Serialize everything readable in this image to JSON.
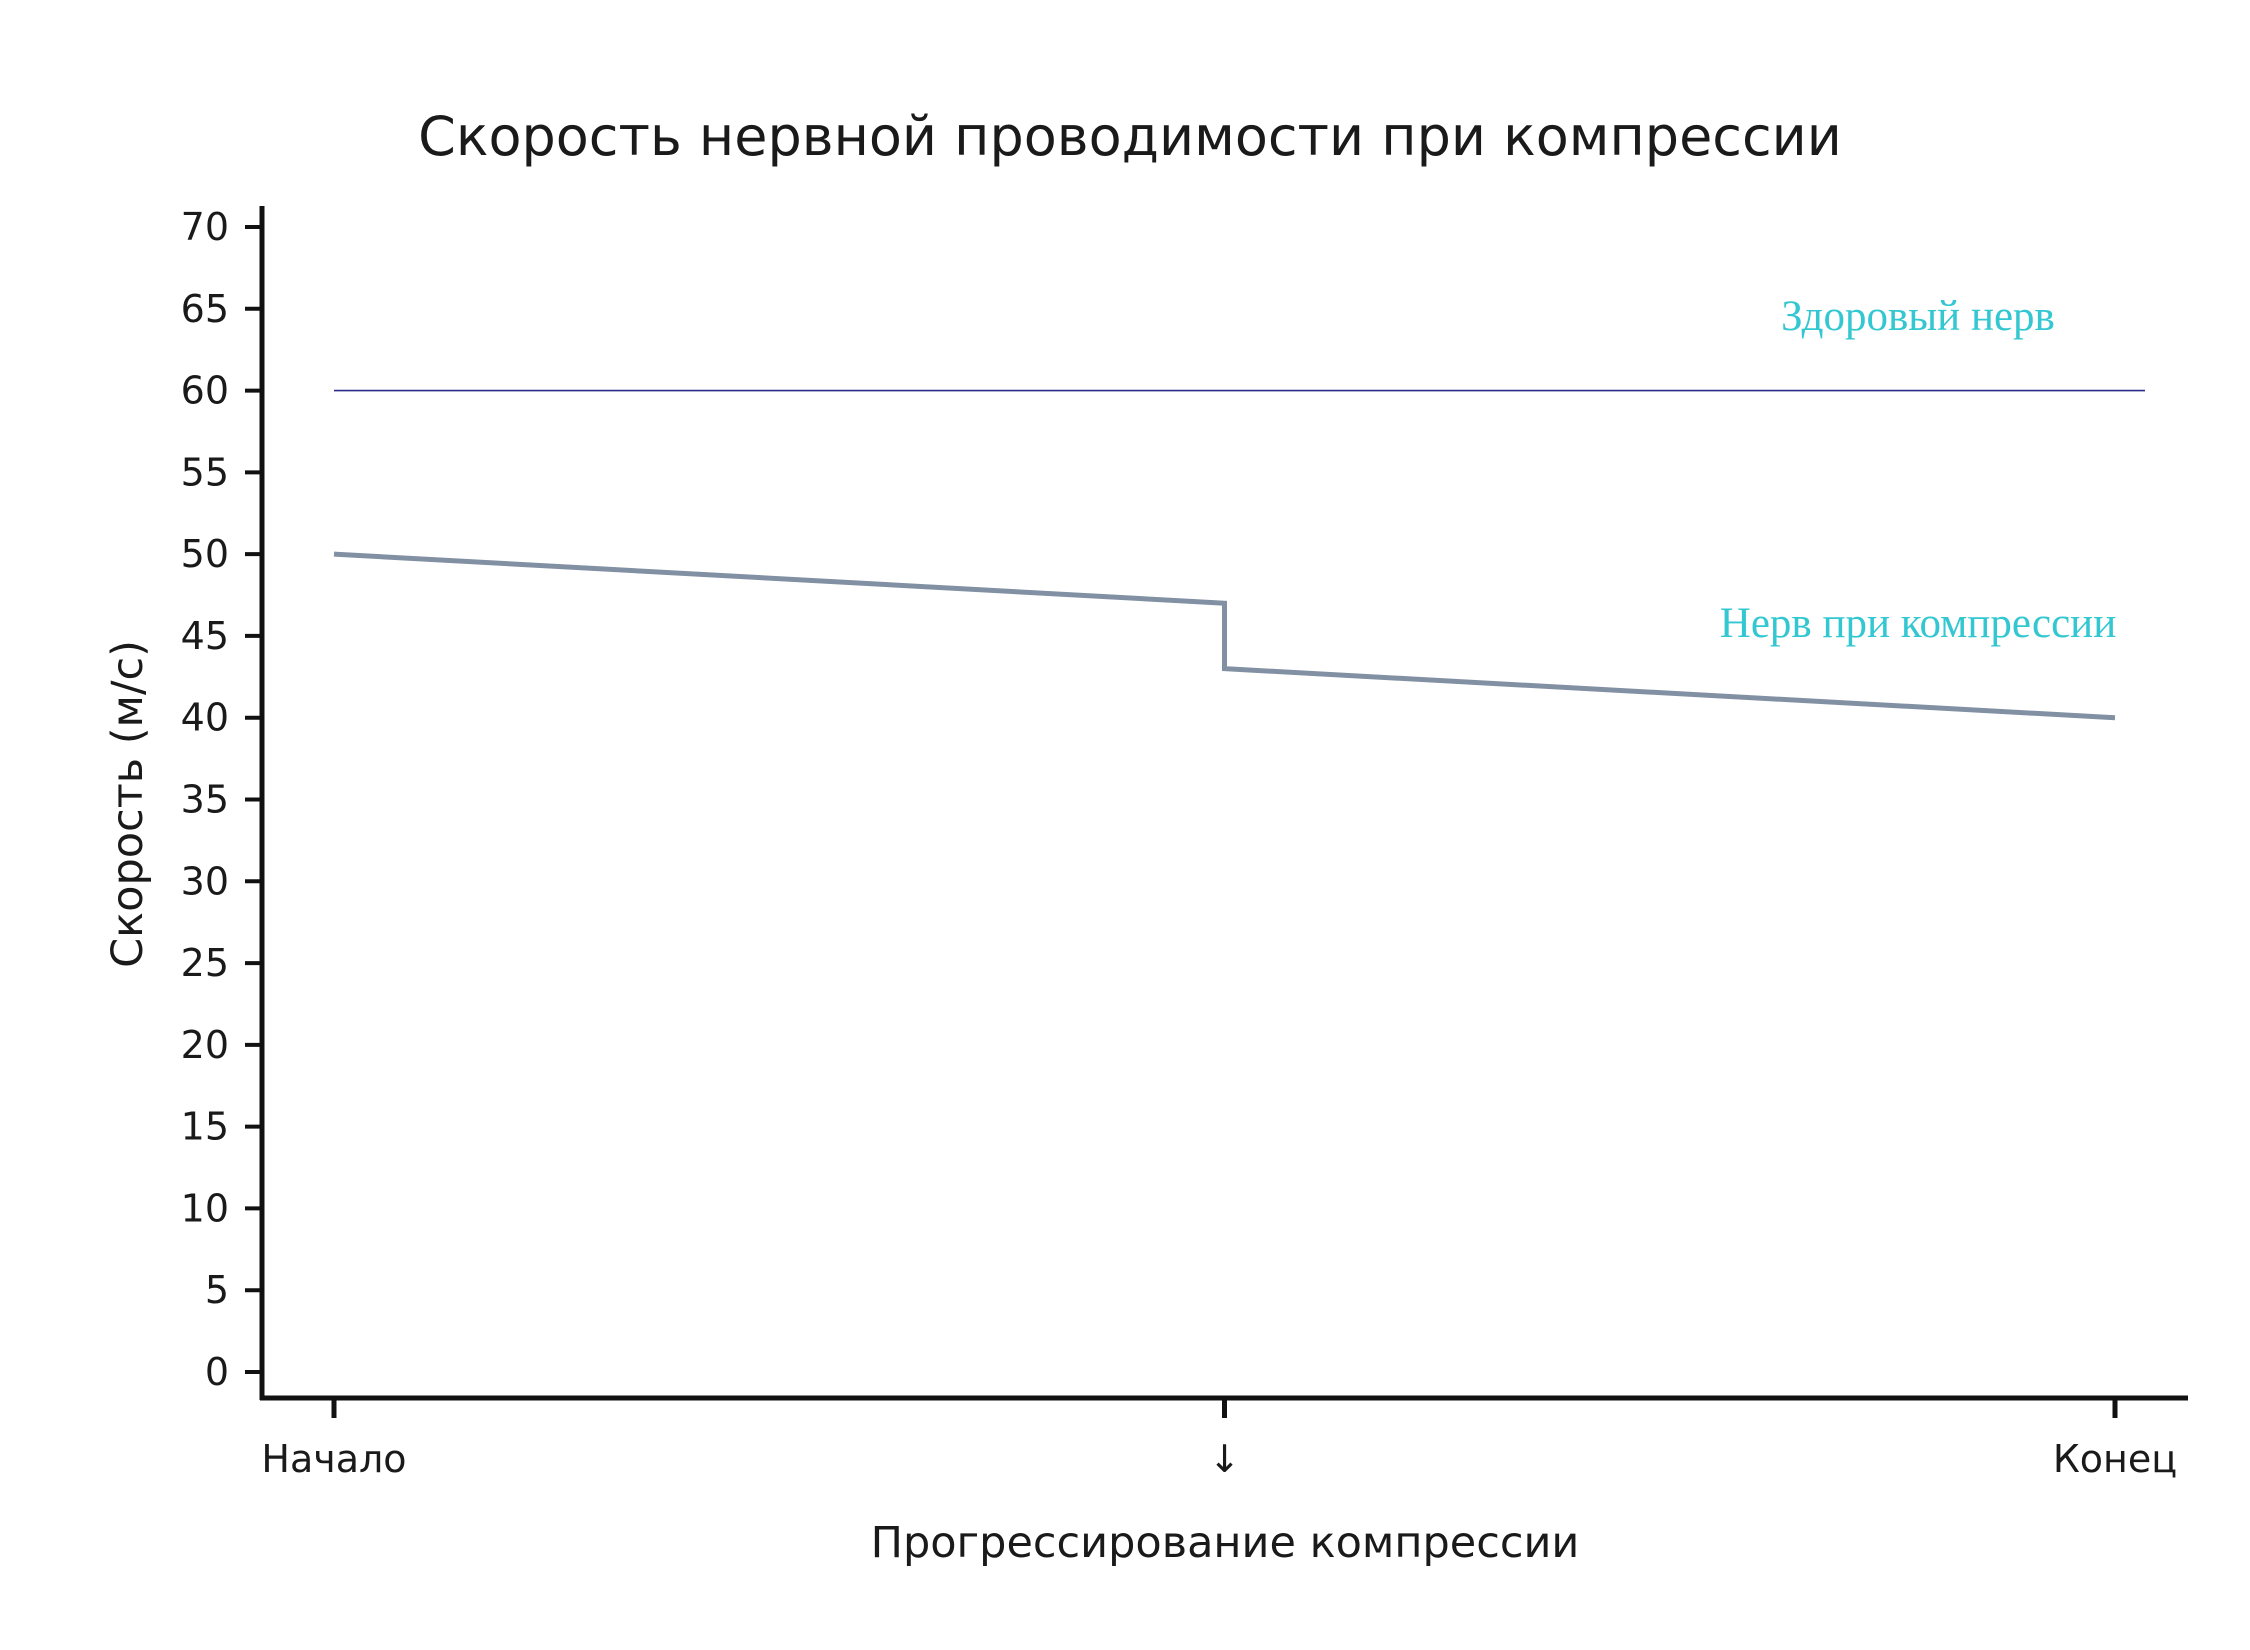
{
  "chart_data": {
    "type": "line",
    "title": "Скорость нервной проводимости при компрессии",
    "xlabel": "Прогрессирование компрессии",
    "ylabel": "Скорость (м/с)",
    "ylim": [
      0,
      70
    ],
    "y_ticks": [
      0,
      5,
      10,
      15,
      20,
      25,
      30,
      35,
      40,
      45,
      50,
      55,
      60,
      65,
      70
    ],
    "x_domain": [
      0,
      1
    ],
    "x_ticks": [
      {
        "x": 0,
        "label": "Начало"
      },
      {
        "x": 0.5,
        "label": "↓"
      },
      {
        "x": 1,
        "label": "Конец"
      }
    ],
    "grid": false,
    "legend": "inline labels, right",
    "series": [
      {
        "name": "Здоровый нерв",
        "color": "#2a2a8c",
        "label_color": "#33c7d1",
        "points": [
          [
            0,
            60
          ],
          [
            1,
            60
          ]
        ]
      },
      {
        "name": "Нерв при компрессии",
        "color": "#8290a3",
        "label_color": "#33c7d1",
        "points": [
          [
            0,
            50
          ],
          [
            0.5,
            47
          ],
          [
            0.5,
            43
          ],
          [
            1,
            40
          ]
        ]
      }
    ]
  }
}
